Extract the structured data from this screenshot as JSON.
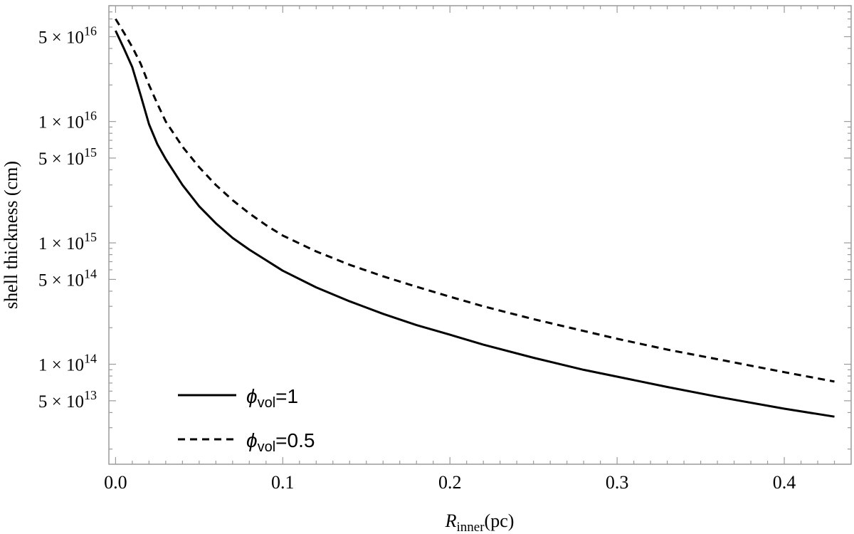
{
  "chart_data": {
    "type": "line",
    "title": "",
    "xlabel_main": "R",
    "xlabel_sub": "inner",
    "xlabel_unit": "(pc)",
    "ylabel": "shell thickness (cm)",
    "xlim": [
      -0.004,
      0.44
    ],
    "ylim": [
      15000000000000.0,
      9e+16
    ],
    "y_scale": "log",
    "grid": false,
    "legend_position": "bottom-left",
    "x_ticks": [
      {
        "value": 0.0,
        "label": "0.0"
      },
      {
        "value": 0.1,
        "label": "0.1"
      },
      {
        "value": 0.2,
        "label": "0.2"
      },
      {
        "value": 0.3,
        "label": "0.3"
      },
      {
        "value": 0.4,
        "label": "0.4"
      }
    ],
    "y_ticks": [
      {
        "value": 5e+16,
        "mant": "5",
        "exp": "16"
      },
      {
        "value": 1e+16,
        "mant": "1",
        "exp": "16"
      },
      {
        "value": 5000000000000000.0,
        "mant": "5",
        "exp": "15"
      },
      {
        "value": 1000000000000000.0,
        "mant": "1",
        "exp": "15"
      },
      {
        "value": 500000000000000.0,
        "mant": "5",
        "exp": "14"
      },
      {
        "value": 100000000000000.0,
        "mant": "1",
        "exp": "14"
      },
      {
        "value": 50000000000000.0,
        "mant": "5",
        "exp": "13"
      }
    ],
    "series": [
      {
        "name_symbol": "ϕ",
        "name_sub": "vol",
        "name_value": "=1",
        "style": "solid",
        "color": "#000000",
        "points": [
          [
            0.0,
            5.6e+16
          ],
          [
            0.005,
            4e+16
          ],
          [
            0.01,
            2.8e+16
          ],
          [
            0.015,
            1.65e+16
          ],
          [
            0.02,
            9500000000000000.0
          ],
          [
            0.025,
            6500000000000000.0
          ],
          [
            0.03,
            4900000000000000.0
          ],
          [
            0.04,
            3000000000000000.0
          ],
          [
            0.05,
            2000000000000000.0
          ],
          [
            0.06,
            1450000000000000.0
          ],
          [
            0.07,
            1100000000000000.0
          ],
          [
            0.08,
            880000000000000.0
          ],
          [
            0.09,
            720000000000000.0
          ],
          [
            0.1,
            590000000000000.0
          ],
          [
            0.12,
            430000000000000.0
          ],
          [
            0.14,
            330000000000000.0
          ],
          [
            0.16,
            260000000000000.0
          ],
          [
            0.18,
            210000000000000.0
          ],
          [
            0.2,
            175000000000000.0
          ],
          [
            0.22,
            145000000000000.0
          ],
          [
            0.25,
            113000000000000.0
          ],
          [
            0.28,
            90000000000000.0
          ],
          [
            0.3,
            79000000000000.0
          ],
          [
            0.33,
            65000000000000.0
          ],
          [
            0.36,
            54000000000000.0
          ],
          [
            0.4,
            43000000000000.0
          ],
          [
            0.43,
            37000000000000.0
          ]
        ]
      },
      {
        "name_symbol": "ϕ",
        "name_sub": "vol",
        "name_value": "=0.5",
        "style": "dashed",
        "color": "#000000",
        "points": [
          [
            0.0,
            7e+16
          ],
          [
            0.005,
            5.4e+16
          ],
          [
            0.01,
            4.1e+16
          ],
          [
            0.015,
            3e+16
          ],
          [
            0.02,
            2e+16
          ],
          [
            0.025,
            1.4e+16
          ],
          [
            0.03,
            1e+16
          ],
          [
            0.04,
            6200000000000000.0
          ],
          [
            0.05,
            4200000000000000.0
          ],
          [
            0.06,
            3000000000000000.0
          ],
          [
            0.07,
            2250000000000000.0
          ],
          [
            0.08,
            1750000000000000.0
          ],
          [
            0.09,
            1400000000000000.0
          ],
          [
            0.1,
            1150000000000000.0
          ],
          [
            0.12,
            850000000000000.0
          ],
          [
            0.14,
            660000000000000.0
          ],
          [
            0.16,
            530000000000000.0
          ],
          [
            0.18,
            435000000000000.0
          ],
          [
            0.2,
            360000000000000.0
          ],
          [
            0.22,
            300000000000000.0
          ],
          [
            0.25,
            235000000000000.0
          ],
          [
            0.28,
            188000000000000.0
          ],
          [
            0.3,
            162000000000000.0
          ],
          [
            0.33,
            132000000000000.0
          ],
          [
            0.36,
            110000000000000.0
          ],
          [
            0.4,
            86000000000000.0
          ],
          [
            0.43,
            72000000000000.0
          ]
        ]
      }
    ]
  }
}
